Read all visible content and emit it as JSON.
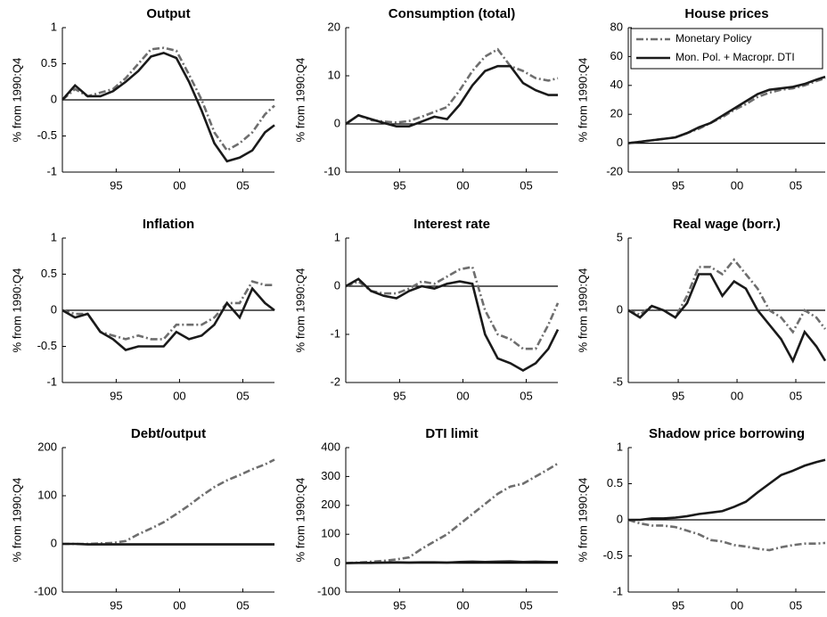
{
  "chart_data": [
    {
      "type": "line",
      "title": "Output",
      "ylabel": "% from 1990:Q4",
      "x": [
        1990.75,
        1991.75,
        1992.75,
        1993.75,
        1994.75,
        1995.75,
        1996.75,
        1997.75,
        1998.75,
        1999.75,
        2000.75,
        2001.75,
        2002.75,
        2003.75,
        2004.75,
        2005.75,
        2006.75,
        2007.5
      ],
      "xlim": [
        1990.75,
        2007.5
      ],
      "xticks": [
        {
          "value": 1995,
          "label": "95"
        },
        {
          "value": 2000,
          "label": "00"
        },
        {
          "value": 2005,
          "label": "05"
        }
      ],
      "ylim": [
        -1,
        1
      ],
      "yticks": [
        -1,
        -0.5,
        0,
        0.5,
        1
      ],
      "series": [
        {
          "color": "#6e6e6e",
          "style": "dashdot",
          "values": [
            0,
            0.15,
            0.05,
            0.1,
            0.15,
            0.3,
            0.5,
            0.7,
            0.72,
            0.68,
            0.35,
            0.0,
            -0.45,
            -0.7,
            -0.6,
            -0.45,
            -0.2,
            -0.08
          ]
        },
        {
          "color": "#1a1a1a",
          "style": "solid",
          "values": [
            0,
            0.2,
            0.05,
            0.05,
            0.12,
            0.25,
            0.4,
            0.6,
            0.65,
            0.58,
            0.25,
            -0.15,
            -0.6,
            -0.85,
            -0.8,
            -0.7,
            -0.45,
            -0.35
          ]
        }
      ]
    },
    {
      "type": "line",
      "title": "Consumption (total)",
      "ylabel": "% from 1990:Q4",
      "x": [
        1990.75,
        1991.75,
        1992.75,
        1993.75,
        1994.75,
        1995.75,
        1996.75,
        1997.75,
        1998.75,
        1999.75,
        2000.75,
        2001.75,
        2002.75,
        2003.75,
        2004.75,
        2005.75,
        2006.75,
        2007.5
      ],
      "xlim": [
        1990.75,
        2007.5
      ],
      "xticks": [
        {
          "value": 1995,
          "label": "95"
        },
        {
          "value": 2000,
          "label": "00"
        },
        {
          "value": 2005,
          "label": "05"
        }
      ],
      "ylim": [
        -10,
        20
      ],
      "yticks": [
        -10,
        0,
        10,
        20
      ],
      "series": [
        {
          "color": "#6e6e6e",
          "style": "dashdot",
          "values": [
            0,
            1.8,
            0.8,
            0.5,
            0.3,
            0.6,
            1.5,
            2.5,
            3.5,
            7,
            11,
            14,
            15.5,
            12,
            11,
            9.5,
            9,
            9.5
          ]
        },
        {
          "color": "#1a1a1a",
          "style": "solid",
          "values": [
            0,
            1.8,
            1,
            0.2,
            -0.5,
            -0.5,
            0.5,
            1.5,
            1,
            4,
            8,
            11,
            12,
            12,
            8.5,
            7,
            6,
            6
          ]
        }
      ]
    },
    {
      "type": "line",
      "title": "House prices",
      "ylabel": "% from 1990:Q4",
      "x": [
        1990.75,
        1991.75,
        1992.75,
        1993.75,
        1994.75,
        1995.75,
        1996.75,
        1997.75,
        1998.75,
        1999.75,
        2000.75,
        2001.75,
        2002.75,
        2003.75,
        2004.75,
        2005.75,
        2006.75,
        2007.5
      ],
      "xlim": [
        1990.75,
        2007.5
      ],
      "xticks": [
        {
          "value": 1995,
          "label": "95"
        },
        {
          "value": 2000,
          "label": "00"
        },
        {
          "value": 2005,
          "label": "05"
        }
      ],
      "ylim": [
        -20,
        80
      ],
      "yticks": [
        -20,
        0,
        20,
        40,
        60,
        80
      ],
      "legend": "upper left",
      "series": [
        {
          "name": "Monetary Policy",
          "color": "#6e6e6e",
          "style": "dashdot",
          "values": [
            0,
            1,
            2,
            3,
            4,
            7,
            10,
            14,
            18,
            23,
            27,
            32,
            35,
            37,
            38,
            40,
            43,
            45
          ]
        },
        {
          "name": "Mon. Pol. + Macropr. DTI",
          "color": "#1a1a1a",
          "style": "solid",
          "values": [
            0,
            1,
            2,
            3,
            4,
            7,
            11,
            14,
            19,
            24,
            29,
            34,
            37,
            38,
            39,
            41,
            44,
            46
          ]
        }
      ]
    },
    {
      "type": "line",
      "title": "Inflation",
      "ylabel": "% from 1990:Q4",
      "x": [
        1990.75,
        1991.75,
        1992.75,
        1993.75,
        1994.75,
        1995.75,
        1996.75,
        1997.75,
        1998.75,
        1999.75,
        2000.75,
        2001.75,
        2002.75,
        2003.75,
        2004.75,
        2005.75,
        2006.75,
        2007.5
      ],
      "xlim": [
        1990.75,
        2007.5
      ],
      "xticks": [
        {
          "value": 1995,
          "label": "95"
        },
        {
          "value": 2000,
          "label": "00"
        },
        {
          "value": 2005,
          "label": "05"
        }
      ],
      "ylim": [
        -1,
        1
      ],
      "yticks": [
        -1,
        -0.5,
        0,
        0.5,
        1
      ],
      "series": [
        {
          "color": "#6e6e6e",
          "style": "dashdot",
          "values": [
            0,
            -0.05,
            -0.05,
            -0.3,
            -0.35,
            -0.4,
            -0.35,
            -0.4,
            -0.4,
            -0.2,
            -0.2,
            -0.2,
            -0.1,
            0.1,
            0.1,
            0.4,
            0.35,
            0.35
          ]
        },
        {
          "color": "#1a1a1a",
          "style": "solid",
          "values": [
            0,
            -0.1,
            -0.05,
            -0.3,
            -0.4,
            -0.55,
            -0.5,
            -0.5,
            -0.5,
            -0.3,
            -0.4,
            -0.35,
            -0.2,
            0.1,
            -0.1,
            0.3,
            0.1,
            0
          ]
        }
      ]
    },
    {
      "type": "line",
      "title": "Interest rate",
      "ylabel": "% from 1990:Q4",
      "x": [
        1990.75,
        1991.75,
        1992.75,
        1993.75,
        1994.75,
        1995.75,
        1996.75,
        1997.75,
        1998.75,
        1999.75,
        2000.75,
        2001.75,
        2002.75,
        2003.75,
        2004.75,
        2005.75,
        2006.75,
        2007.5
      ],
      "xlim": [
        1990.75,
        2007.5
      ],
      "xticks": [
        {
          "value": 1995,
          "label": "95"
        },
        {
          "value": 2000,
          "label": "00"
        },
        {
          "value": 2005,
          "label": "05"
        }
      ],
      "ylim": [
        -2,
        1
      ],
      "yticks": [
        -2,
        -1,
        0,
        1
      ],
      "series": [
        {
          "color": "#6e6e6e",
          "style": "dashdot",
          "values": [
            0,
            0.1,
            -0.1,
            -0.15,
            -0.15,
            -0.05,
            0.1,
            0.05,
            0.2,
            0.35,
            0.4,
            -0.5,
            -1,
            -1.1,
            -1.3,
            -1.3,
            -0.8,
            -0.35
          ]
        },
        {
          "color": "#1a1a1a",
          "style": "solid",
          "values": [
            0,
            0.15,
            -0.1,
            -0.2,
            -0.25,
            -0.1,
            0,
            -0.05,
            0.05,
            0.1,
            0.05,
            -1,
            -1.5,
            -1.6,
            -1.75,
            -1.6,
            -1.3,
            -0.9
          ]
        }
      ]
    },
    {
      "type": "line",
      "title": "Real wage (borr.)",
      "ylabel": "% from 1990:Q4",
      "x": [
        1990.75,
        1991.75,
        1992.75,
        1993.75,
        1994.75,
        1995.75,
        1996.75,
        1997.75,
        1998.75,
        1999.75,
        2000.75,
        2001.75,
        2002.75,
        2003.75,
        2004.75,
        2005.75,
        2006.75,
        2007.5
      ],
      "xlim": [
        1990.75,
        2007.5
      ],
      "xticks": [
        {
          "value": 1995,
          "label": "95"
        },
        {
          "value": 2000,
          "label": "00"
        },
        {
          "value": 2005,
          "label": "05"
        }
      ],
      "ylim": [
        -5,
        5
      ],
      "yticks": [
        -5,
        0,
        5
      ],
      "series": [
        {
          "color": "#6e6e6e",
          "style": "dashdot",
          "values": [
            0,
            -0.3,
            0.3,
            0,
            -0.5,
            1,
            3,
            3,
            2.5,
            3.5,
            2.5,
            1.5,
            0,
            -0.5,
            -1.5,
            0,
            -0.5,
            -1.3
          ]
        },
        {
          "color": "#1a1a1a",
          "style": "solid",
          "values": [
            0,
            -0.5,
            0.3,
            0,
            -0.5,
            0.5,
            2.5,
            2.5,
            1,
            2,
            1.5,
            0,
            -1,
            -2,
            -3.5,
            -1.5,
            -2.5,
            -3.5
          ]
        }
      ]
    },
    {
      "type": "line",
      "title": "Debt/output",
      "ylabel": "% from 1990:Q4",
      "x": [
        1990.75,
        1991.75,
        1992.75,
        1993.75,
        1994.75,
        1995.75,
        1996.75,
        1997.75,
        1998.75,
        1999.75,
        2000.75,
        2001.75,
        2002.75,
        2003.75,
        2004.75,
        2005.75,
        2006.75,
        2007.5
      ],
      "xlim": [
        1990.75,
        2007.5
      ],
      "xticks": [
        {
          "value": 1995,
          "label": "95"
        },
        {
          "value": 2000,
          "label": "00"
        },
        {
          "value": 2005,
          "label": "05"
        }
      ],
      "ylim": [
        -100,
        200
      ],
      "yticks": [
        -100,
        0,
        100,
        200
      ],
      "series": [
        {
          "color": "#6e6e6e",
          "style": "dashdot",
          "values": [
            0,
            0,
            0,
            1,
            2,
            6,
            20,
            32,
            45,
            62,
            80,
            100,
            118,
            132,
            143,
            155,
            165,
            175
          ]
        },
        {
          "color": "#1a1a1a",
          "style": "solid",
          "values": [
            0,
            0,
            -1,
            -1,
            -1,
            -1,
            -1,
            -1,
            -1,
            -1,
            -1,
            -1,
            -1,
            -1,
            -1,
            -1,
            -1,
            -1
          ]
        }
      ]
    },
    {
      "type": "line",
      "title": "DTI limit",
      "ylabel": "% from 1990:Q4",
      "x": [
        1990.75,
        1991.75,
        1992.75,
        1993.75,
        1994.75,
        1995.75,
        1996.75,
        1997.75,
        1998.75,
        1999.75,
        2000.75,
        2001.75,
        2002.75,
        2003.75,
        2004.75,
        2005.75,
        2006.75,
        2007.5
      ],
      "xlim": [
        1990.75,
        2007.5
      ],
      "xticks": [
        {
          "value": 1995,
          "label": "95"
        },
        {
          "value": 2000,
          "label": "00"
        },
        {
          "value": 2005,
          "label": "05"
        }
      ],
      "ylim": [
        -100,
        400
      ],
      "yticks": [
        -100,
        0,
        100,
        200,
        300,
        400
      ],
      "series": [
        {
          "color": "#6e6e6e",
          "style": "dashdot",
          "values": [
            0,
            2,
            5,
            8,
            13,
            20,
            50,
            75,
            100,
            135,
            170,
            205,
            240,
            265,
            275,
            300,
            325,
            345
          ]
        },
        {
          "color": "#1a1a1a",
          "style": "solid",
          "values": [
            0,
            1,
            1,
            2,
            3,
            2,
            3,
            3,
            2,
            4,
            5,
            4,
            5,
            6,
            4,
            5,
            4,
            4
          ]
        }
      ]
    },
    {
      "type": "line",
      "title": "Shadow price borrowing",
      "ylabel": "% from 1990:Q4",
      "x": [
        1990.75,
        1991.75,
        1992.75,
        1993.75,
        1994.75,
        1995.75,
        1996.75,
        1997.75,
        1998.75,
        1999.75,
        2000.75,
        2001.75,
        2002.75,
        2003.75,
        2004.75,
        2005.75,
        2006.75,
        2007.5
      ],
      "xlim": [
        1990.75,
        2007.5
      ],
      "xticks": [
        {
          "value": 1995,
          "label": "95"
        },
        {
          "value": 2000,
          "label": "00"
        },
        {
          "value": 2005,
          "label": "05"
        }
      ],
      "ylim": [
        -1,
        1
      ],
      "yticks": [
        -1,
        -0.5,
        0,
        0.5,
        1
      ],
      "series": [
        {
          "color": "#6e6e6e",
          "style": "dashdot",
          "values": [
            0,
            -0.05,
            -0.08,
            -0.08,
            -0.1,
            -0.15,
            -0.2,
            -0.28,
            -0.3,
            -0.35,
            -0.37,
            -0.4,
            -0.42,
            -0.38,
            -0.35,
            -0.33,
            -0.33,
            -0.32
          ]
        },
        {
          "color": "#1a1a1a",
          "style": "solid",
          "values": [
            0,
            0,
            0.02,
            0.02,
            0.03,
            0.05,
            0.08,
            0.1,
            0.12,
            0.18,
            0.25,
            0.38,
            0.5,
            0.62,
            0.68,
            0.75,
            0.8,
            0.83
          ]
        }
      ]
    }
  ]
}
